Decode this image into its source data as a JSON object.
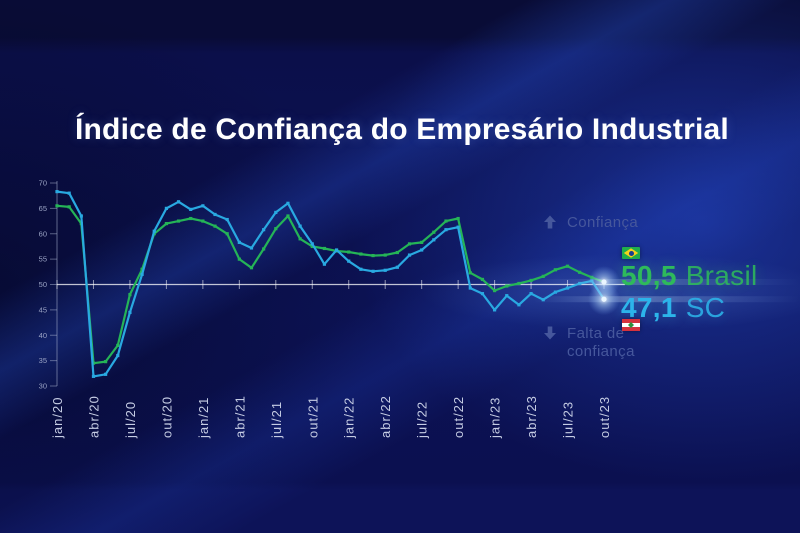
{
  "title": "Índice de Confiança do Empresário Industrial",
  "annotations": {
    "up_label": "Confiança",
    "down_label_line1": "Falta de",
    "down_label_line2": "confiança"
  },
  "latest_values": {
    "brasil": {
      "value": "50,5",
      "name": "Brasil",
      "flag": "brazil-flag"
    },
    "sc": {
      "value": "47,1",
      "name": "SC",
      "flag": "santa-catarina-flag"
    }
  },
  "colors": {
    "brasil_green": "#25b457",
    "sc_blue": "#29a9e1",
    "baseline_white": "#ffffff",
    "axis_line": "#aab3d0",
    "y_tick_text": "#9aa3c4",
    "x_tick_text": "#c6cde4",
    "muted_label": "#46579c",
    "title_text": "#ffffff",
    "background": "#0c1150"
  },
  "chart_data": {
    "type": "line",
    "title": "Índice de Confiança do Empresário Industrial",
    "xlabel": "",
    "ylabel": "",
    "ylim": [
      30,
      70
    ],
    "y_ticks": [
      30,
      35,
      40,
      45,
      50,
      55,
      60,
      65,
      70
    ],
    "baseline": 50,
    "grid": false,
    "legend_position": "right-inline",
    "x": [
      "jan/20",
      "fev/20",
      "mar/20",
      "abr/20",
      "mai/20",
      "jun/20",
      "jul/20",
      "ago/20",
      "set/20",
      "out/20",
      "nov/20",
      "dez/20",
      "jan/21",
      "fev/21",
      "mar/21",
      "abr/21",
      "mai/21",
      "jun/21",
      "jul/21",
      "ago/21",
      "set/21",
      "out/21",
      "nov/21",
      "dez/21",
      "jan/22",
      "fev/22",
      "mar/22",
      "abr/22",
      "mai/22",
      "jun/22",
      "jul/22",
      "ago/22",
      "set/22",
      "out/22",
      "nov/22",
      "dez/22",
      "jan/23",
      "fev/23",
      "mar/23",
      "abr/23",
      "mai/23",
      "jun/23",
      "jul/23",
      "ago/23",
      "set/23",
      "out/23"
    ],
    "x_tick_labels": [
      "jan/20",
      "abr/20",
      "jul/20",
      "out/20",
      "jan/21",
      "abr/21",
      "jul/21",
      "out/21",
      "jan/22",
      "abr/22",
      "jul/22",
      "out/22",
      "jan/23",
      "abr/23",
      "jul/23",
      "out/23"
    ],
    "series": [
      {
        "name": "Brasil",
        "color": "#25b457",
        "latest_label": "50,5",
        "values": [
          65.5,
          65.3,
          62.0,
          34.5,
          34.8,
          38.0,
          48.0,
          53.0,
          60.0,
          62.0,
          62.5,
          63.0,
          62.5,
          61.5,
          60.0,
          55.0,
          53.3,
          57.0,
          61.0,
          63.5,
          59.0,
          57.5,
          57.1,
          56.6,
          56.4,
          56.0,
          55.7,
          55.8,
          56.3,
          58.0,
          58.3,
          60.3,
          62.5,
          63.0,
          52.3,
          51.0,
          48.8,
          49.7,
          50.2,
          50.8,
          51.6,
          52.9,
          53.6,
          52.4,
          51.4,
          50.5
        ]
      },
      {
        "name": "SC",
        "color": "#29a9e1",
        "latest_label": "47,1",
        "values": [
          68.3,
          68.0,
          63.5,
          31.9,
          32.3,
          36.0,
          44.5,
          52.0,
          60.5,
          65.0,
          66.3,
          64.8,
          65.5,
          63.8,
          62.8,
          58.3,
          57.2,
          60.8,
          64.2,
          66.0,
          61.5,
          58.0,
          54.0,
          56.8,
          54.6,
          53.0,
          52.6,
          52.8,
          53.4,
          55.8,
          56.8,
          58.8,
          60.8,
          61.3,
          49.3,
          48.2,
          45.0,
          47.8,
          46.0,
          48.2,
          47.0,
          48.5,
          49.3,
          50.2,
          50.7,
          47.1
        ]
      }
    ]
  }
}
